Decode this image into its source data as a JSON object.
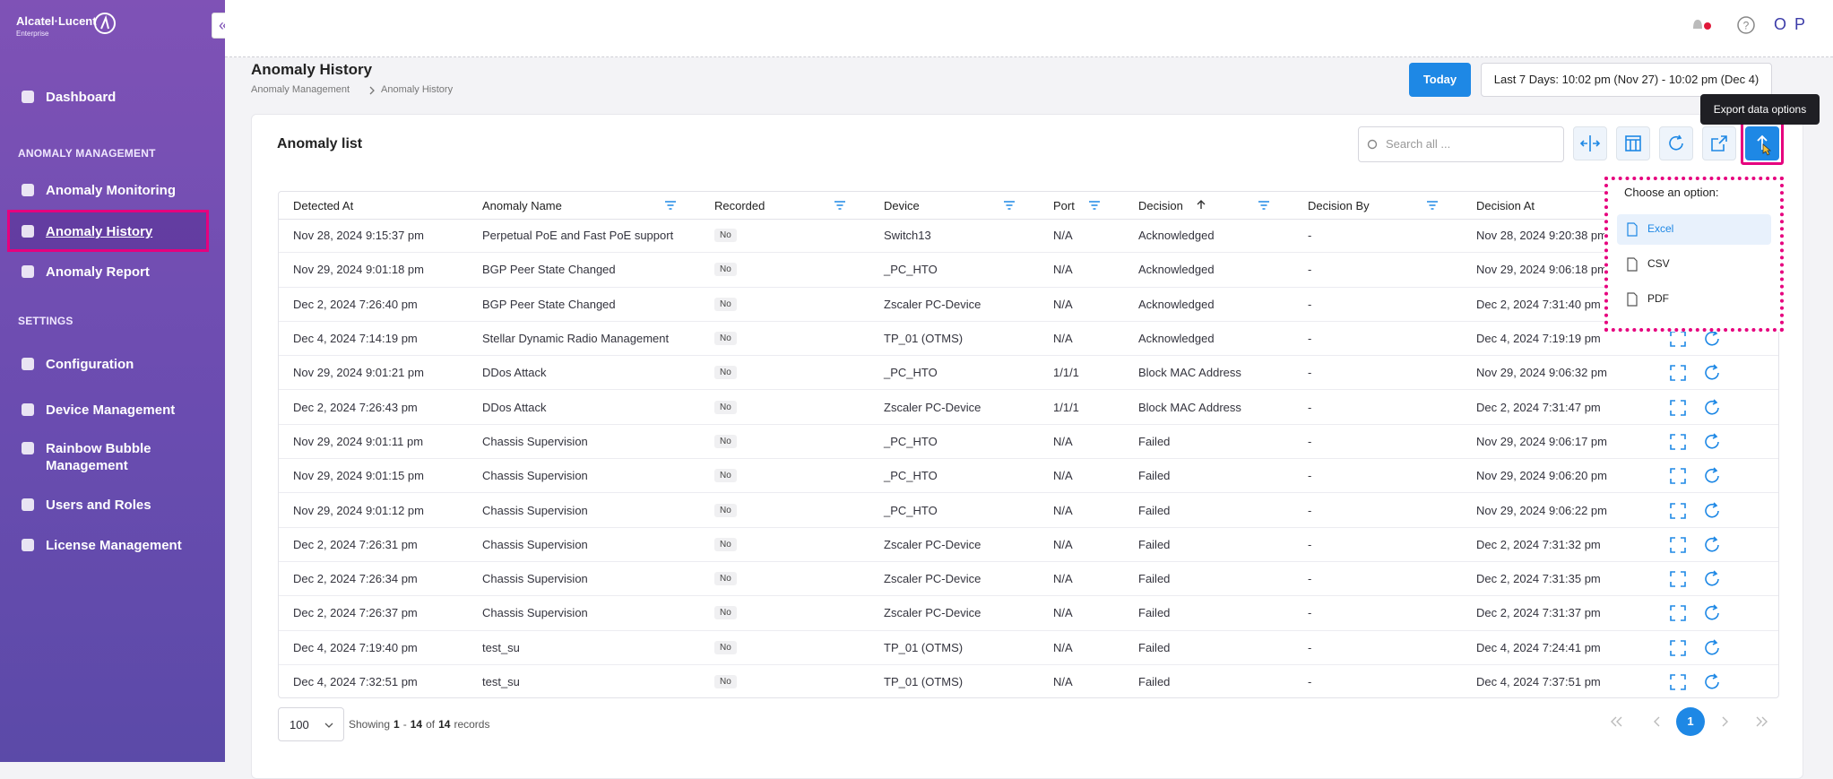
{
  "sidebar": {
    "brand": "Alcatel·Lucent",
    "brand_sub": "Enterprise",
    "dashboard": "Dashboard",
    "groups": [
      {
        "title": "ANOMALY MANAGEMENT",
        "items": [
          {
            "label": "Anomaly Monitoring"
          },
          {
            "label": "Anomaly History",
            "active": true
          },
          {
            "label": "Anomaly Report"
          }
        ]
      },
      {
        "title": "SETTINGS",
        "items": [
          {
            "label": "Configuration"
          },
          {
            "label": "Device Management"
          },
          {
            "label": "Rainbow Bubble Management"
          },
          {
            "label": "Users and Roles"
          },
          {
            "label": "License Management"
          }
        ]
      }
    ]
  },
  "topbar": {
    "user": "O P"
  },
  "header": {
    "title": "Anomaly History",
    "breadcrumb": [
      "Anomaly Management",
      "Anomaly History"
    ],
    "today": "Today",
    "range": "Last 7 Days: 10:02 pm (Nov 27) - 10:02 pm (Dec 4)"
  },
  "card": {
    "title": "Anomaly list",
    "search_placeholder": "Search all ...",
    "tooltip": "Export data options"
  },
  "export_menu": {
    "title": "Choose an option:",
    "options": [
      {
        "label": "Excel",
        "active": true
      },
      {
        "label": "CSV"
      },
      {
        "label": "PDF"
      }
    ]
  },
  "table": {
    "columns": [
      {
        "label": "Detected At"
      },
      {
        "label": "Anomaly Name",
        "filter": true
      },
      {
        "label": "Recorded",
        "filter": true
      },
      {
        "label": "Device",
        "filter": true
      },
      {
        "label": "Port",
        "filter": true
      },
      {
        "label": "Decision",
        "filter": true,
        "sort": "asc"
      },
      {
        "label": "Decision By",
        "filter": true
      },
      {
        "label": "Decision At"
      }
    ],
    "rows": [
      [
        "Nov 28, 2024 9:15:37 pm",
        "Perpetual PoE and Fast PoE support",
        "No",
        "Switch13",
        "N/A",
        "Acknowledged",
        "-",
        "Nov 28, 2024 9:20:38 pm"
      ],
      [
        "Nov 29, 2024 9:01:18 pm",
        "BGP Peer State Changed",
        "No",
        "_PC_HTO",
        "N/A",
        "Acknowledged",
        "-",
        "Nov 29, 2024 9:06:18 pm"
      ],
      [
        "Dec 2, 2024 7:26:40 pm",
        "BGP Peer State Changed",
        "No",
        "Zscaler PC-Device",
        "N/A",
        "Acknowledged",
        "-",
        "Dec 2, 2024 7:31:40 pm"
      ],
      [
        "Dec 4, 2024 7:14:19 pm",
        "Stellar Dynamic Radio Management",
        "No",
        "TP_01 (OTMS)",
        "N/A",
        "Acknowledged",
        "-",
        "Dec 4, 2024 7:19:19 pm"
      ],
      [
        "Nov 29, 2024 9:01:21 pm",
        "DDos Attack",
        "No",
        "_PC_HTO",
        "1/1/1",
        "Block MAC Address",
        "-",
        "Nov 29, 2024 9:06:32 pm"
      ],
      [
        "Dec 2, 2024 7:26:43 pm",
        "DDos Attack",
        "No",
        "Zscaler PC-Device",
        "1/1/1",
        "Block MAC Address",
        "-",
        "Dec 2, 2024 7:31:47 pm"
      ],
      [
        "Nov 29, 2024 9:01:11 pm",
        "Chassis Supervision",
        "No",
        "_PC_HTO",
        "N/A",
        "Failed",
        "-",
        "Nov 29, 2024 9:06:17 pm"
      ],
      [
        "Nov 29, 2024 9:01:15 pm",
        "Chassis Supervision",
        "No",
        "_PC_HTO",
        "N/A",
        "Failed",
        "-",
        "Nov 29, 2024 9:06:20 pm"
      ],
      [
        "Nov 29, 2024 9:01:12 pm",
        "Chassis Supervision",
        "No",
        "_PC_HTO",
        "N/A",
        "Failed",
        "-",
        "Nov 29, 2024 9:06:22 pm"
      ],
      [
        "Dec 2, 2024 7:26:31 pm",
        "Chassis Supervision",
        "No",
        "Zscaler PC-Device",
        "N/A",
        "Failed",
        "-",
        "Dec 2, 2024 7:31:32 pm"
      ],
      [
        "Dec 2, 2024 7:26:34 pm",
        "Chassis Supervision",
        "No",
        "Zscaler PC-Device",
        "N/A",
        "Failed",
        "-",
        "Dec 2, 2024 7:31:35 pm"
      ],
      [
        "Dec 2, 2024 7:26:37 pm",
        "Chassis Supervision",
        "No",
        "Zscaler PC-Device",
        "N/A",
        "Failed",
        "-",
        "Dec 2, 2024 7:31:37 pm"
      ],
      [
        "Dec 4, 2024 7:19:40 pm",
        "test_su",
        "No",
        "TP_01 (OTMS)",
        "N/A",
        "Failed",
        "-",
        "Dec 4, 2024 7:24:41 pm"
      ],
      [
        "Dec 4, 2024 7:32:51 pm",
        "test_su",
        "No",
        "TP_01 (OTMS)",
        "N/A",
        "Failed",
        "-",
        "Dec 4, 2024 7:37:51 pm"
      ]
    ]
  },
  "footer": {
    "page_size": "100",
    "showing": [
      "Showing",
      "1",
      "-",
      "14",
      "of",
      "14",
      "records"
    ],
    "pages": [
      "1"
    ]
  }
}
